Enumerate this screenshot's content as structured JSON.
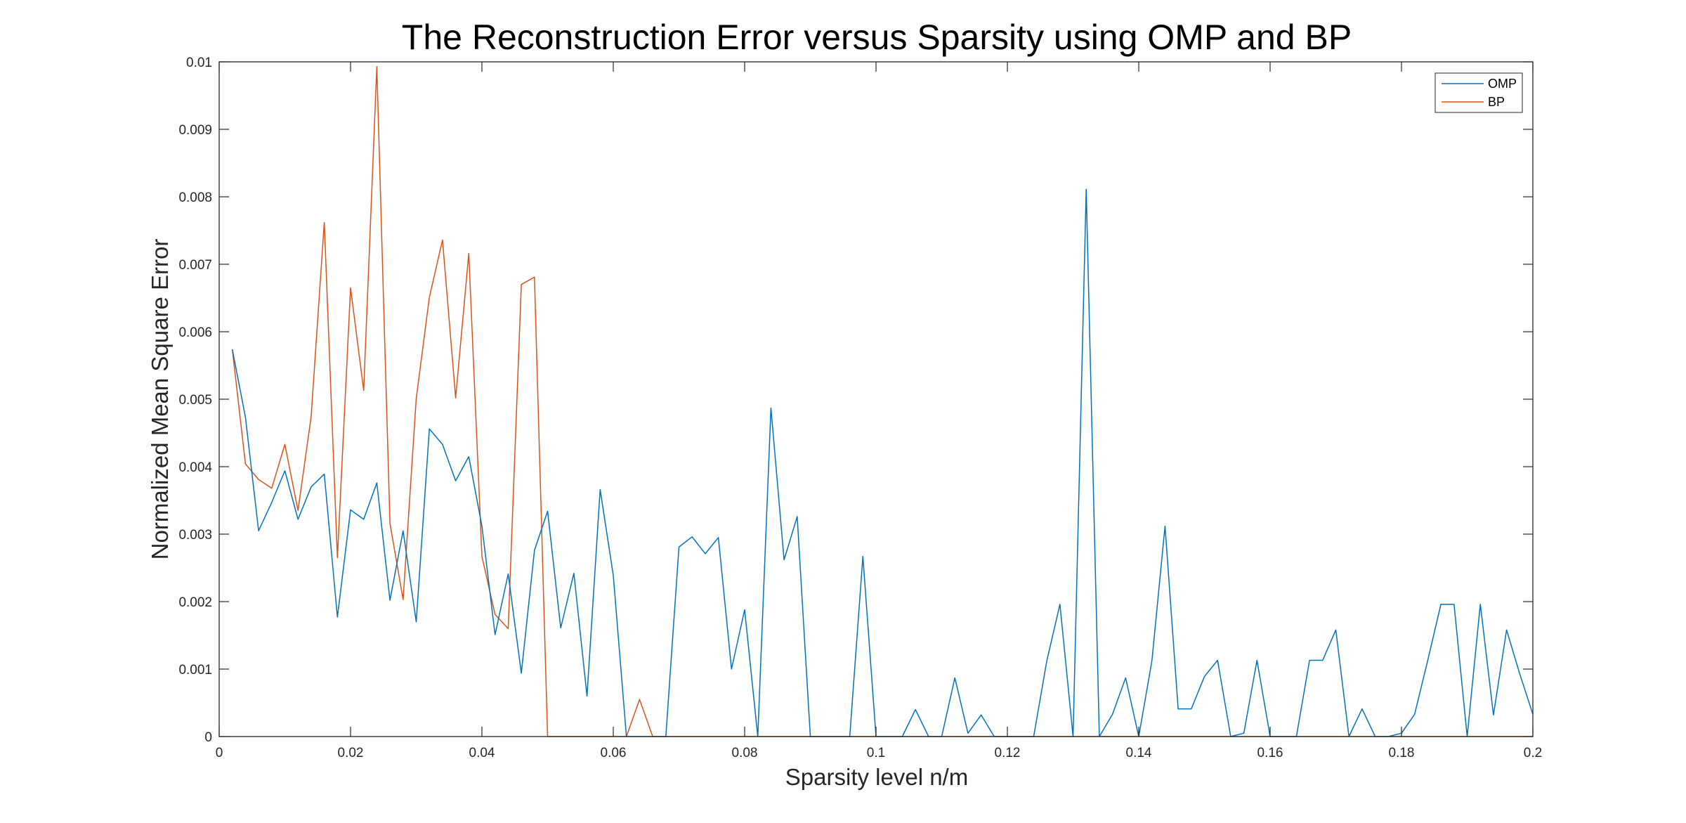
{
  "chart_data": {
    "type": "line",
    "title": "The Reconstruction Error versus Sparsity using OMP and BP",
    "xlabel": "Sparsity level n/m",
    "ylabel": "Normalized Mean Square Error",
    "xlim": [
      0,
      0.2
    ],
    "ylim": [
      0,
      0.01
    ],
    "xticks": [
      0,
      0.02,
      0.04,
      0.06,
      0.08,
      0.1,
      0.12,
      0.14,
      0.16,
      0.18,
      0.2
    ],
    "xtick_labels": [
      "0",
      "0.02",
      "0.04",
      "0.06",
      "0.08",
      "0.1",
      "0.12",
      "0.14",
      "0.16",
      "0.18",
      "0.2"
    ],
    "yticks": [
      0,
      0.001,
      0.002,
      0.003,
      0.004,
      0.005,
      0.006,
      0.007,
      0.008,
      0.009,
      0.01
    ],
    "ytick_labels": [
      "0",
      "0.001",
      "0.002",
      "0.003",
      "0.004",
      "0.005",
      "0.006",
      "0.007",
      "0.008",
      "0.009",
      "0.01"
    ],
    "grid": false,
    "legend_position": "top-right",
    "series": [
      {
        "name": "OMP",
        "color": "#0072BD",
        "x": [
          0.002,
          0.004,
          0.006,
          0.008,
          0.01,
          0.012,
          0.014,
          0.016,
          0.018,
          0.02,
          0.022,
          0.024,
          0.026,
          0.028,
          0.03,
          0.032,
          0.034,
          0.036,
          0.038,
          0.04,
          0.042,
          0.044,
          0.046,
          0.048,
          0.05,
          0.052,
          0.054,
          0.056,
          0.058,
          0.06,
          0.062,
          0.064,
          0.066,
          0.068,
          0.07,
          0.072,
          0.074,
          0.076,
          0.078,
          0.08,
          0.082,
          0.084,
          0.086,
          0.088,
          0.09,
          0.092,
          0.094,
          0.096,
          0.098,
          0.1,
          0.102,
          0.104,
          0.106,
          0.108,
          0.11,
          0.112,
          0.114,
          0.116,
          0.118,
          0.12,
          0.122,
          0.124,
          0.126,
          0.128,
          0.13,
          0.132,
          0.134,
          0.136,
          0.138,
          0.14,
          0.142,
          0.144,
          0.146,
          0.148,
          0.15,
          0.152,
          0.154,
          0.156,
          0.158,
          0.16,
          0.162,
          0.164,
          0.166,
          0.168,
          0.17,
          0.172,
          0.174,
          0.176,
          0.178,
          0.18,
          0.182,
          0.184,
          0.186,
          0.188,
          0.19,
          0.192,
          0.194,
          0.196,
          0.198,
          0.2
        ],
        "y": [
          0.00574,
          0.00473,
          0.00305,
          0.00347,
          0.00394,
          0.00322,
          0.0037,
          0.00389,
          0.00177,
          0.00336,
          0.00322,
          0.00376,
          0.00202,
          0.00305,
          0.0017,
          0.00456,
          0.00433,
          0.00379,
          0.00415,
          0.00312,
          0.00151,
          0.00241,
          0.00094,
          0.00276,
          0.00334,
          0.00161,
          0.00242,
          0.0006,
          0.00366,
          0.00239,
          0,
          0,
          0,
          0,
          0.00281,
          0.00296,
          0.00271,
          0.00295,
          0.001,
          0.00188,
          0,
          0.00487,
          0.00262,
          0.00326,
          0,
          0,
          0,
          0,
          0.00267,
          0,
          0,
          0,
          0.0004,
          0,
          0,
          0.00087,
          5e-05,
          0.00032,
          0,
          0,
          0,
          0,
          0.00112,
          0.00196,
          0,
          0.00811,
          0,
          0.00033,
          0.00087,
          0,
          0.00112,
          0.00312,
          0.00041,
          0.00041,
          0.00089,
          0.00113,
          0,
          5e-05,
          0.00113,
          0,
          0,
          0,
          0.00113,
          0.00113,
          0.00158,
          0,
          0.00041,
          0,
          0,
          5e-05,
          0.00033,
          0.00113,
          0.00196,
          0.00196,
          0,
          0.00196,
          0.00032,
          0.00158,
          0.00093,
          0.00033
        ]
      },
      {
        "name": "BP",
        "color": "#D95319",
        "x": [
          0.002,
          0.004,
          0.006,
          0.008,
          0.01,
          0.012,
          0.014,
          0.016,
          0.018,
          0.02,
          0.022,
          0.024,
          0.026,
          0.028,
          0.03,
          0.032,
          0.034,
          0.036,
          0.038,
          0.04,
          0.042,
          0.044,
          0.046,
          0.048,
          0.05,
          0.052,
          0.054,
          0.056,
          0.058,
          0.06,
          0.062,
          0.064,
          0.066,
          0.068,
          0.07,
          0.072,
          0.074,
          0.076,
          0.078,
          0.08,
          0.082,
          0.084,
          0.086,
          0.088,
          0.09,
          0.092,
          0.094,
          0.096,
          0.098,
          0.1,
          0.102,
          0.104,
          0.106,
          0.108,
          0.11,
          0.112,
          0.114,
          0.116,
          0.118,
          0.12,
          0.122,
          0.124,
          0.126,
          0.128,
          0.13,
          0.132,
          0.134,
          0.136,
          0.138,
          0.14,
          0.142,
          0.144,
          0.146,
          0.148,
          0.15,
          0.152,
          0.154,
          0.156,
          0.158,
          0.16,
          0.162,
          0.164,
          0.166,
          0.168,
          0.17,
          0.172,
          0.174,
          0.176,
          0.178,
          0.18,
          0.182,
          0.184,
          0.186,
          0.188,
          0.19,
          0.192,
          0.194,
          0.196,
          0.198,
          0.2
        ],
        "y": [
          0.00574,
          0.00404,
          0.00381,
          0.00368,
          0.00433,
          0.00335,
          0.00474,
          0.00762,
          0.00265,
          0.00665,
          0.00513,
          0.00993,
          0.00316,
          0.00203,
          0.00501,
          0.00651,
          0.00736,
          0.00502,
          0.00716,
          0.00267,
          0.00181,
          0.0016,
          0.0067,
          0.00681,
          0,
          0,
          0,
          0,
          0,
          0,
          0,
          0.00055,
          0,
          0,
          0,
          0,
          0,
          0,
          0,
          0,
          0,
          0,
          0,
          0,
          0,
          0,
          0,
          0,
          0,
          0,
          0,
          0,
          0,
          0,
          0,
          0,
          0,
          0,
          0,
          0,
          0,
          0,
          0,
          0,
          0,
          0,
          0,
          0,
          0,
          0,
          0,
          0,
          0,
          0,
          0,
          0,
          0,
          0,
          0,
          0,
          0,
          0,
          0,
          0,
          0,
          0,
          0,
          0,
          0,
          0,
          0,
          0,
          0,
          0,
          0,
          0,
          0,
          0,
          0,
          0
        ]
      }
    ]
  }
}
